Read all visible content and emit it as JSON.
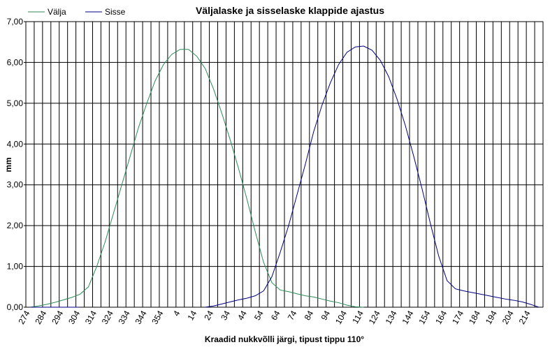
{
  "chart_data": {
    "type": "line",
    "title": "Väljalaske ja sisselaske klappide ajastus",
    "x_label": "Kraadid nukkvõlli  järgi, tipust tippu 110°",
    "y_label": "mm",
    "categories": [
      "274",
      null,
      "284",
      null,
      "294",
      null,
      "304",
      null,
      "314",
      null,
      "324",
      null,
      "334",
      null,
      "344",
      null,
      "354",
      null,
      "4",
      null,
      "14",
      null,
      "24",
      null,
      "34",
      null,
      "44",
      null,
      "54",
      null,
      "64",
      null,
      "74",
      null,
      "84",
      null,
      "94",
      null,
      "104",
      null,
      "114",
      null,
      "124",
      null,
      "134",
      null,
      "144",
      null,
      "154",
      null,
      "164",
      null,
      "174",
      null,
      "184",
      null,
      "194",
      null,
      "204",
      null,
      "214",
      null
    ],
    "series": [
      {
        "name": "Välja",
        "color": "#2e8b57",
        "values": [
          0,
          0.03,
          0.07,
          0.12,
          0.18,
          0.24,
          0.32,
          0.5,
          1.0,
          1.6,
          2.3,
          3.0,
          3.7,
          4.4,
          5.0,
          5.55,
          5.95,
          6.2,
          6.32,
          6.32,
          6.15,
          5.85,
          5.35,
          4.75,
          4.1,
          3.4,
          2.65,
          1.85,
          1.1,
          0.6,
          0.42,
          0.38,
          0.33,
          0.28,
          0.25,
          0.2,
          0.15,
          0.11,
          0.05,
          0.01,
          0,
          null,
          null,
          null,
          null,
          null,
          null,
          null,
          null,
          null,
          null,
          null,
          null,
          null,
          null,
          null,
          null,
          null,
          null,
          null,
          null,
          null
        ]
      },
      {
        "name": "Sisse",
        "color": "#000080",
        "values": [
          0,
          0,
          0,
          0,
          0,
          0,
          0,
          null,
          null,
          null,
          null,
          null,
          null,
          null,
          null,
          null,
          null,
          null,
          null,
          null,
          null,
          0,
          0.03,
          0.08,
          0.13,
          0.18,
          0.22,
          0.28,
          0.4,
          0.75,
          1.35,
          2.0,
          2.75,
          3.5,
          4.3,
          4.95,
          5.5,
          5.95,
          6.25,
          6.38,
          6.4,
          6.3,
          6.05,
          5.65,
          5.1,
          4.45,
          3.7,
          2.9,
          2.05,
          1.25,
          0.65,
          0.45,
          0.4,
          0.36,
          0.32,
          0.28,
          0.24,
          0.2,
          0.17,
          0.13,
          0.07,
          0
        ]
      }
    ],
    "ylim": [
      0,
      7
    ],
    "yticks": [
      {
        "value": 0,
        "label": "0,00"
      },
      {
        "value": 1,
        "label": "1,00"
      },
      {
        "value": 2,
        "label": "2,00"
      },
      {
        "value": 3,
        "label": "3,00"
      },
      {
        "value": 4,
        "label": "4,00"
      },
      {
        "value": 5,
        "label": "5,00"
      },
      {
        "value": 6,
        "label": "6,00"
      },
      {
        "value": 7,
        "label": "7,00"
      }
    ],
    "grid": true,
    "legend": "top-left"
  }
}
